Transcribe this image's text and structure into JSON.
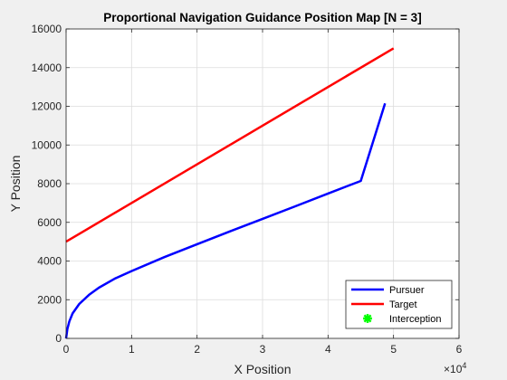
{
  "chart_data": {
    "type": "line",
    "title": "Proportional Navigation Guidance Position Map [N = 3]",
    "xlabel": "X Position",
    "ylabel": "Y Position",
    "x_multiplier_label": "10",
    "x_multiplier_exponent": "4",
    "xlim": [
      0,
      6
    ],
    "ylim": [
      0,
      16000
    ],
    "x_ticks": [
      "0",
      "1",
      "2",
      "3",
      "4",
      "5",
      "6"
    ],
    "y_ticks": [
      "0",
      "2000",
      "4000",
      "6000",
      "8000",
      "10000",
      "12000",
      "14000",
      "16000"
    ],
    "grid": true,
    "legend_position": "bottom-right",
    "series": [
      {
        "name": "Pursuer",
        "color": "#0000ff",
        "x": [
          0,
          0.02,
          0.05,
          0.1,
          0.2,
          0.35,
          0.5,
          0.75,
          1.0,
          1.5,
          2.0,
          2.5,
          3.0,
          3.5,
          4.0,
          4.5,
          4.87
        ],
        "y": [
          0,
          480,
          880,
          1290,
          1780,
          2250,
          2620,
          3100,
          3480,
          4200,
          4870,
          5530,
          6180,
          6830,
          7490,
          8140,
          12150
        ]
      },
      {
        "name": "Target",
        "color": "#ff0000",
        "x": [
          0,
          5
        ],
        "y": [
          5000,
          15000
        ]
      },
      {
        "name": "Interception",
        "color": "#00ff00",
        "x": [],
        "y": []
      }
    ]
  }
}
